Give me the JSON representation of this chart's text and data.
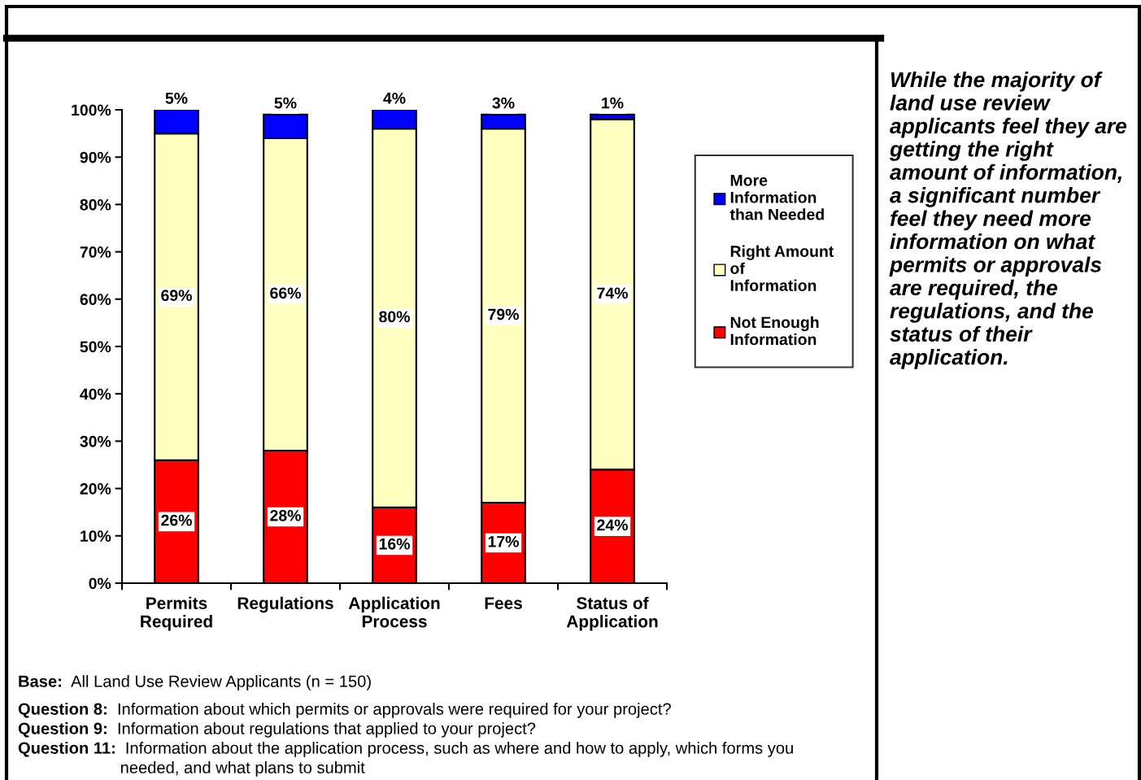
{
  "chart_data": {
    "type": "bar",
    "stacked": true,
    "categories": [
      "Permits\nRequired",
      "Regulations",
      "Application\nProcess",
      "Fees",
      "Status of\nApplication"
    ],
    "series": [
      {
        "name": "Not Enough\nInformation",
        "color": "#ff0000",
        "values": [
          26,
          28,
          16,
          17,
          24
        ],
        "value_labels": [
          "26%",
          "28%",
          "16%",
          "17%",
          "24%"
        ]
      },
      {
        "name": "Right Amount\nof\nInformation",
        "color": "#ffffc0",
        "values": [
          69,
          66,
          80,
          79,
          74
        ],
        "value_labels": [
          "69%",
          "66%",
          "80%",
          "79%",
          "74%"
        ]
      },
      {
        "name": "More\nInformation\nthan Needed",
        "color": "#0000ff",
        "values": [
          5,
          5,
          4,
          3,
          1
        ],
        "value_labels": [
          "5%",
          "5%",
          "4%",
          "3%",
          "1%"
        ]
      }
    ],
    "ylim": [
      0,
      100
    ],
    "yticks": [
      {
        "value": 0,
        "label": "0%"
      },
      {
        "value": 10,
        "label": "10%"
      },
      {
        "value": 20,
        "label": "20%"
      },
      {
        "value": 30,
        "label": "30%"
      },
      {
        "value": 40,
        "label": "40%"
      },
      {
        "value": 50,
        "label": "50%"
      },
      {
        "value": 60,
        "label": "60%"
      },
      {
        "value": 70,
        "label": "70%"
      },
      {
        "value": 80,
        "label": "80%"
      },
      {
        "value": 90,
        "label": "90%"
      },
      {
        "value": 100,
        "label": "100%"
      }
    ],
    "grid": false,
    "legend": "right",
    "annotations": [
      "While the majority of\nland use review\napplicants feel they are\ngetting the right\namount of information,\na significant number\nfeel they need more\ninformation on what\npermits or approvals\nare required, the\nregulations, and the\nstatus of their\napplication.",
      "Base:  All Land Use Review Applicants (n = 150)",
      "Question 8:  Information about which permits or approvals were required for your project?",
      "Question 9:  Information about regulations that applied to your project?",
      "Question 11:  Information about the application process, such as where and how to apply, which forms you\nneeded, and what plans to submit"
    ]
  }
}
